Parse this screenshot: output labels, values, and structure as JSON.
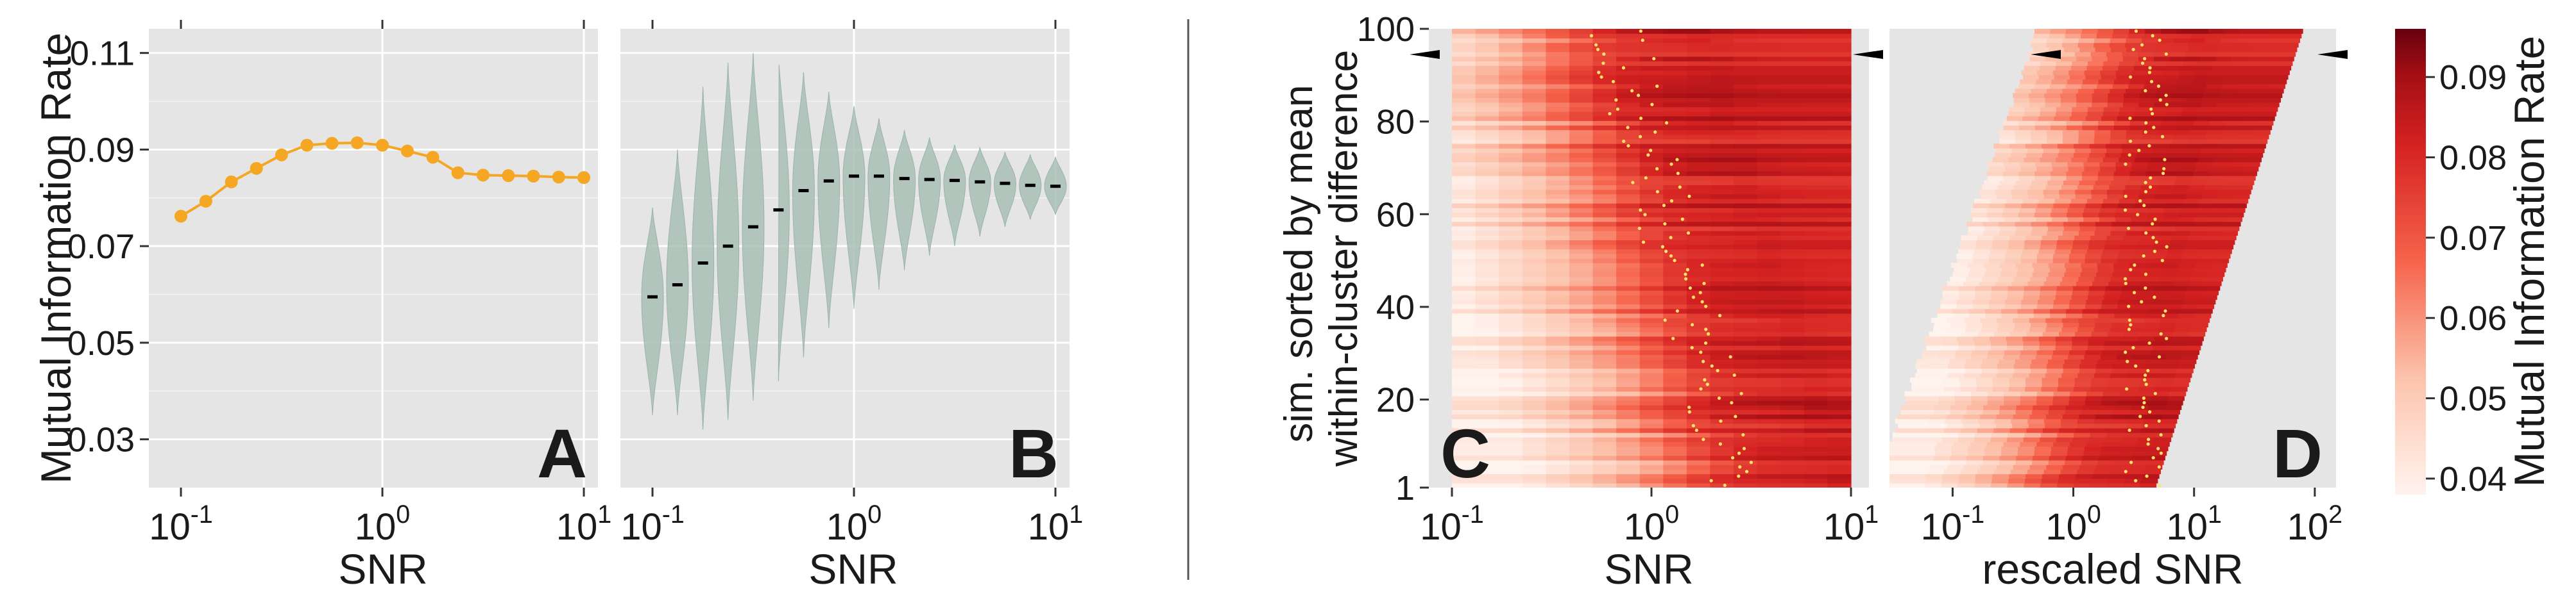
{
  "chart_data": [
    {
      "panel": "A",
      "type": "line",
      "xlabel": "SNR",
      "ylabel": "Mutual Information Rate",
      "xscale": "log",
      "xlim": [
        0.1,
        10
      ],
      "ylim": [
        0.02,
        0.115
      ],
      "x_ticks": [
        "0",
        "1"
      ],
      "y_ticks": [
        "0.03",
        "0.05",
        "0.07",
        "0.09",
        "0.11"
      ],
      "series": [
        {
          "color": "#F5A623",
          "x": [
            0.1,
            0.133,
            0.178,
            0.237,
            0.316,
            0.422,
            0.562,
            0.75,
            1.0,
            1.33,
            1.78,
            2.37,
            3.16,
            4.22,
            5.62,
            7.5,
            10.0
          ],
          "y": [
            0.0762,
            0.0793,
            0.0833,
            0.0861,
            0.0889,
            0.0909,
            0.0913,
            0.0914,
            0.0909,
            0.0897,
            0.0884,
            0.0852,
            0.0847,
            0.0846,
            0.0845,
            0.0843,
            0.0842
          ]
        }
      ],
      "panel_label": "A",
      "grid": true
    },
    {
      "panel": "B",
      "type": "violin",
      "xlabel": "SNR",
      "xscale": "log",
      "xlim": [
        0.1,
        10
      ],
      "ylim": [
        0.02,
        0.115
      ],
      "x_ticks": [
        "0",
        "1"
      ],
      "violin_color": "#a9bfb6",
      "median_color": "#000000",
      "x": [
        0.1,
        0.133,
        0.178,
        0.237,
        0.316,
        0.422,
        0.562,
        0.75,
        1.0,
        1.33,
        1.78,
        2.37,
        3.16,
        4.22,
        5.62,
        7.5,
        10.0
      ],
      "median": [
        0.0595,
        0.062,
        0.0665,
        0.07,
        0.074,
        0.0775,
        0.0815,
        0.0835,
        0.0845,
        0.0845,
        0.084,
        0.0838,
        0.0836,
        0.0833,
        0.083,
        0.0826,
        0.0824
      ],
      "min": [
        0.035,
        0.035,
        0.032,
        0.034,
        0.038,
        0.042,
        0.047,
        0.053,
        0.057,
        0.061,
        0.065,
        0.068,
        0.07,
        0.072,
        0.074,
        0.0755,
        0.0765
      ],
      "max": [
        0.078,
        0.09,
        0.103,
        0.108,
        0.11,
        0.11,
        0.106,
        0.102,
        0.099,
        0.0965,
        0.094,
        0.0925,
        0.091,
        0.0905,
        0.0895,
        0.089,
        0.0885
      ],
      "panel_label": "B",
      "grid": true
    },
    {
      "panel": "C",
      "type": "heatmap",
      "xlabel": "SNR",
      "ylabel": "sim. sorted  by mean\nwithin-cluster difference",
      "xscale": "log",
      "xlim": [
        0.1,
        10
      ],
      "ylim": [
        1,
        100
      ],
      "x_ticks": [
        "0",
        "1"
      ],
      "y_ticks": [
        "1",
        "20",
        "40",
        "60",
        "80",
        "100"
      ],
      "peak_marker_color": "#FFE36B",
      "panel_label": "C"
    },
    {
      "panel": "D",
      "type": "heatmap",
      "xlabel": "rescaled SNR",
      "xscale": "log",
      "xlim": [
        0.03,
        150
      ],
      "ylim": [
        1,
        100
      ],
      "x_ticks": [
        "-1",
        "0",
        "1",
        "2"
      ],
      "peak_marker_color": "#FFE36B",
      "panel_label": "D"
    },
    {
      "type": "colorbar",
      "label": "Mutual Information Rate",
      "range": [
        0.038,
        0.096
      ],
      "ticks": [
        "0.04",
        "0.05",
        "0.06",
        "0.07",
        "0.08",
        "0.09"
      ],
      "color_low": "#FFF3EE",
      "color_high": "#67000D"
    }
  ]
}
